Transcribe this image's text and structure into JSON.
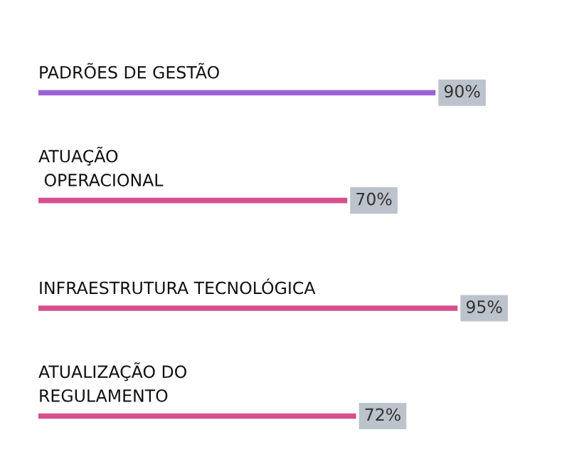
{
  "chart_data": {
    "type": "bar",
    "orientation": "horizontal",
    "categories": [
      "PADRÕES DE GESTÃO",
      "ATUAÇÃO\n OPERACIONAL",
      "INFRAESTRUTURA TECNOLÓGICA",
      "ATUALIZAÇÃO DO\nREGULAMENTO"
    ],
    "values": [
      90,
      70,
      95,
      72
    ],
    "value_labels": [
      "90%",
      "70%",
      "95%",
      "72%"
    ],
    "colors": [
      "#9a62d6",
      "#d5508c",
      "#d5508c",
      "#d5508c"
    ]
  }
}
